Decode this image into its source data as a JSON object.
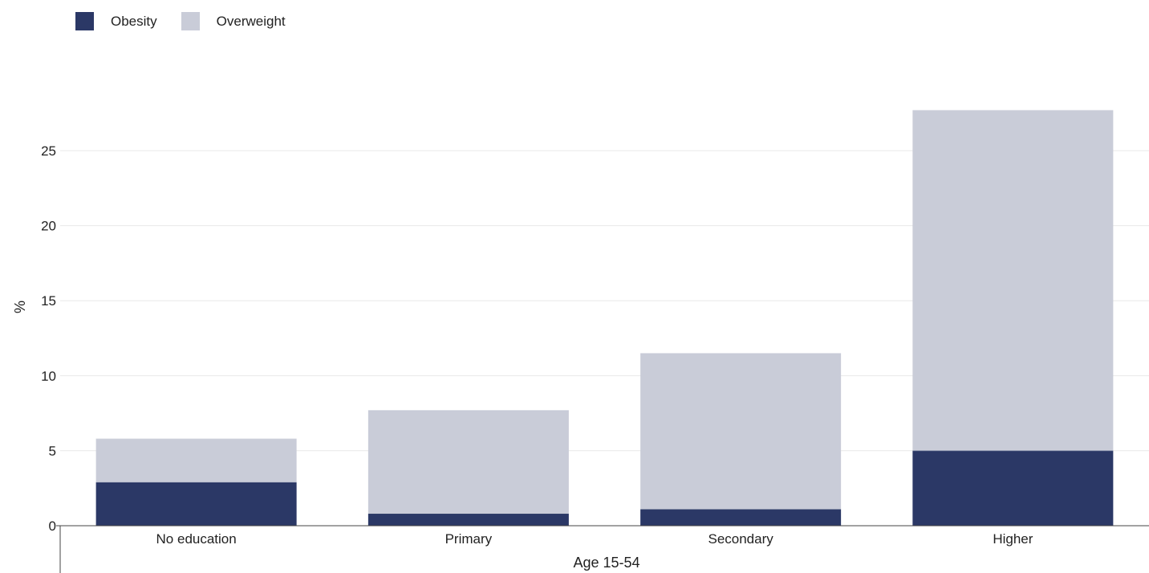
{
  "chart_data": {
    "type": "bar",
    "stacked": true,
    "categories": [
      "No education",
      "Primary",
      "Secondary",
      "Higher"
    ],
    "series": [
      {
        "name": "Obesity",
        "color": "#2b3866",
        "values": [
          2.9,
          0.8,
          1.1,
          5.0
        ]
      },
      {
        "name": "Overweight",
        "color": "#c9ccd8",
        "values": [
          2.9,
          6.9,
          10.4,
          22.7
        ]
      }
    ],
    "ylabel": "%",
    "xlabel": "Age 15-54",
    "ylim": [
      0,
      29
    ],
    "yticks": [
      0,
      5,
      10,
      15,
      20,
      25
    ],
    "grid": true,
    "legend_position": "top-left"
  }
}
